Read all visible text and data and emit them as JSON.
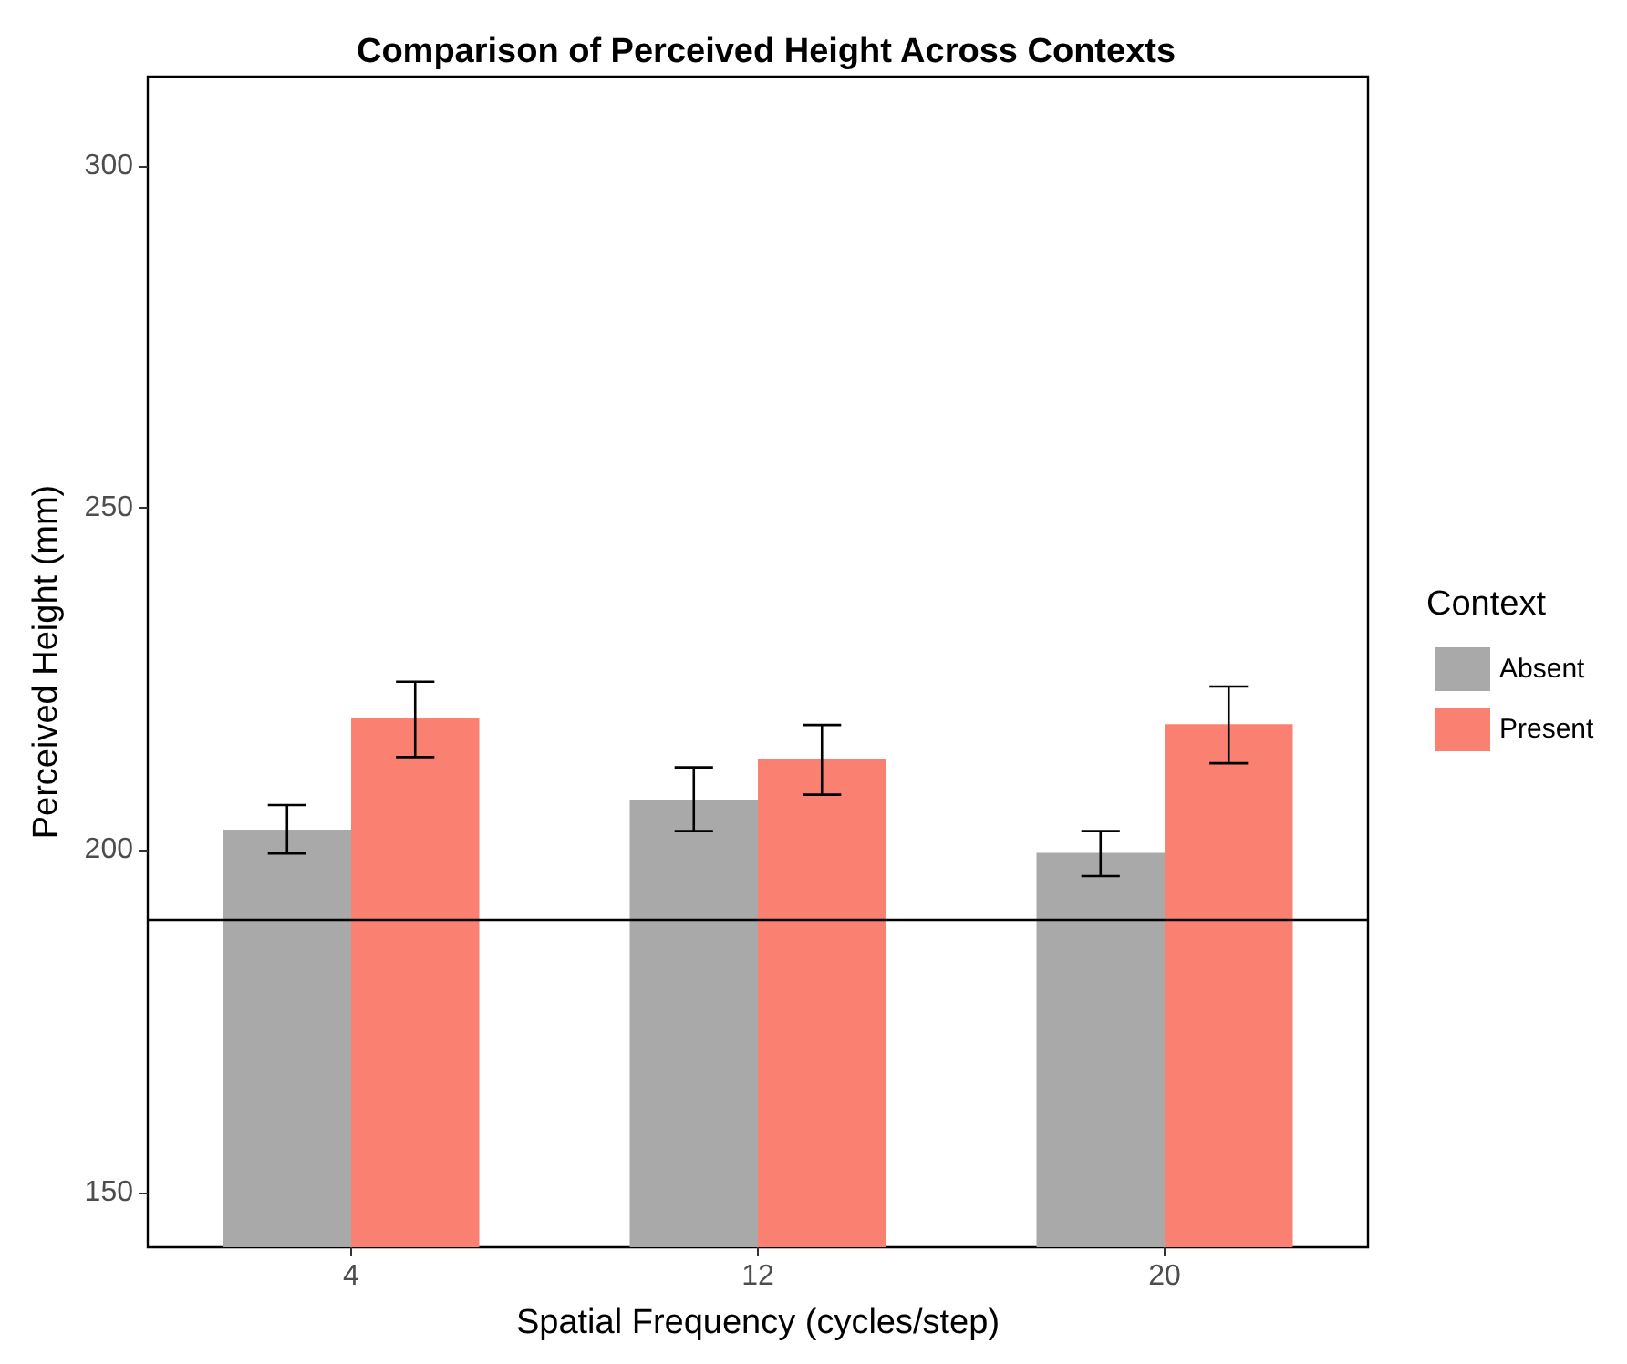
{
  "chart_data": {
    "type": "bar",
    "title": "Comparison of Perceived Height Across Contexts",
    "xlabel": "Spatial Frequency (cycles/step)",
    "ylabel": "Perceived Height (mm)",
    "legend_title": "Context",
    "categories": [
      "4",
      "12",
      "20"
    ],
    "series": [
      {
        "name": "Absent",
        "color": "#a9a9a9",
        "values": [
          203,
          207.4,
          199.6
        ],
        "errors": [
          [
            199.5,
            206.6
          ],
          [
            202.8,
            212.1
          ],
          [
            196.2,
            202.8
          ]
        ]
      },
      {
        "name": "Present",
        "color": "#fa8072",
        "values": [
          219.3,
          213.3,
          218.4
        ],
        "errors": [
          [
            213.6,
            224.6
          ],
          [
            208.1,
            218.3
          ],
          [
            212.7,
            223.9
          ]
        ]
      }
    ],
    "ylim": [
      142,
      313
    ],
    "yticks": [
      150,
      200,
      250,
      300
    ],
    "grid": false,
    "legend": "right",
    "ref_lines": [
      {
        "axis": "y",
        "value": 190,
        "color": "#000000",
        "line_style": "solid"
      }
    ]
  }
}
